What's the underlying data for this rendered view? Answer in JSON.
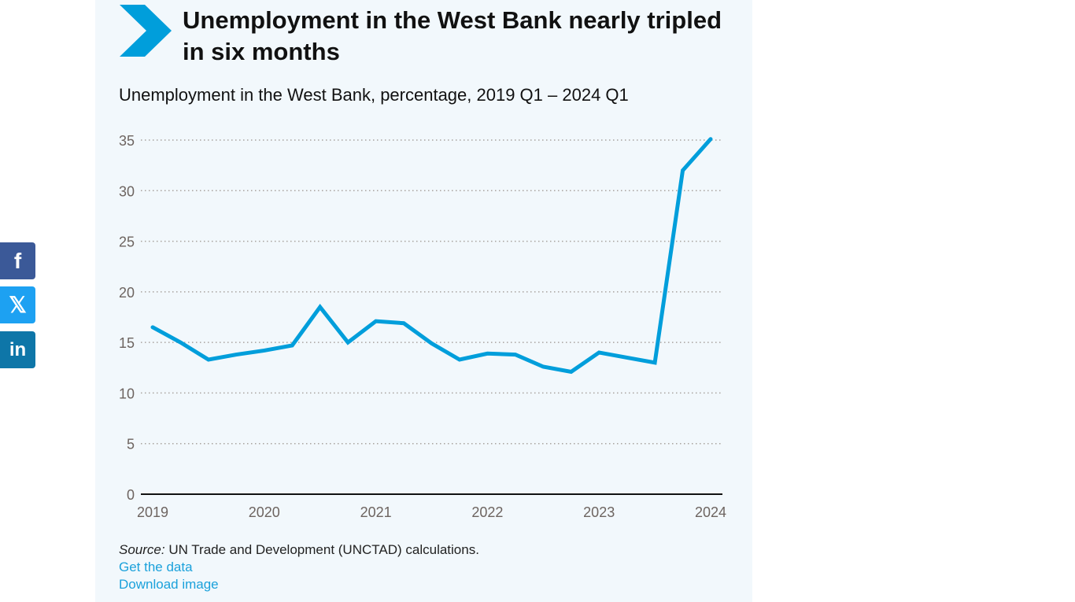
{
  "social": {
    "facebook": {
      "icon": "facebook-icon",
      "glyph": "f",
      "color": "#3b5998"
    },
    "x": {
      "icon": "x-twitter-icon",
      "glyph": "𝕏",
      "color": "#1da1f2"
    },
    "linkedin": {
      "icon": "linkedin-icon",
      "glyph": "in",
      "color": "#0e76a8"
    }
  },
  "headline": "Unemployment in the West Bank nearly tripled in six months",
  "chart_data": {
    "type": "line",
    "title": "Unemployment in the West Bank, percentage, 2019 Q1 – 2024 Q1",
    "xlabel": "",
    "ylabel": "",
    "ylim": [
      0,
      35
    ],
    "yticks": [
      0,
      5,
      10,
      15,
      20,
      25,
      30,
      35
    ],
    "xticks": [
      "2019",
      "2020",
      "2021",
      "2022",
      "2023",
      "2024"
    ],
    "grid": true,
    "x": [
      "2019 Q1",
      "2019 Q2",
      "2019 Q3",
      "2019 Q4",
      "2020 Q1",
      "2020 Q2",
      "2020 Q3",
      "2020 Q4",
      "2021 Q1",
      "2021 Q2",
      "2021 Q3",
      "2021 Q4",
      "2022 Q1",
      "2022 Q2",
      "2022 Q3",
      "2022 Q4",
      "2023 Q1",
      "2023 Q2",
      "2023 Q3",
      "2023 Q4",
      "2024 Q1"
    ],
    "series": [
      {
        "name": "Unemployment rate (%)",
        "color": "#009edb",
        "values": [
          16.5,
          15.0,
          13.3,
          13.8,
          14.2,
          14.7,
          18.5,
          15.0,
          17.1,
          16.9,
          14.9,
          13.3,
          13.9,
          13.8,
          12.6,
          12.1,
          14.0,
          13.5,
          13.0,
          32.0,
          35.1
        ]
      }
    ]
  },
  "footer": {
    "source_label": "Source:",
    "source_text": " UN Trade and Development (UNCTAD) calculations.",
    "get_data": "Get the data",
    "download_image": "Download image"
  },
  "colors": {
    "accent": "#009edb",
    "background": "#f2f8fc",
    "link": "#1ba1db"
  }
}
